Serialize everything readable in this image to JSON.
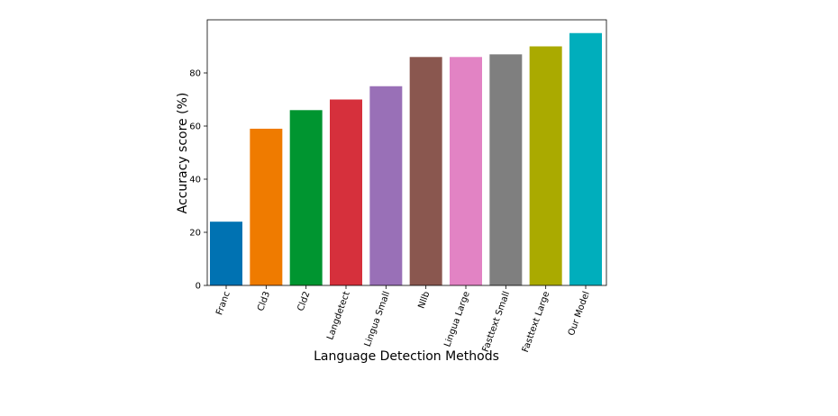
{
  "chart_data": {
    "type": "bar",
    "xlabel": "Language Detection Methods",
    "ylabel": "Accuracy score (%)",
    "ylim": [
      0,
      100
    ],
    "yticks": [
      0,
      20,
      40,
      60,
      80
    ],
    "grid": false,
    "categories": [
      "Franc",
      "Cld3",
      "Cld2",
      "Langdetect",
      "Lingua Small",
      "Nllb",
      "Lingua Large",
      "Fasttext Small",
      "Fasttext Large",
      "Our Model"
    ],
    "values": [
      24,
      59,
      66,
      70,
      75,
      86,
      86,
      87,
      90,
      95
    ],
    "colors": [
      "#0072b2",
      "#ef7b00",
      "#009530",
      "#d6303c",
      "#9970b7",
      "#8a574f",
      "#e283c4",
      "#7f7f7f",
      "#aaaa00",
      "#00aebc"
    ]
  }
}
